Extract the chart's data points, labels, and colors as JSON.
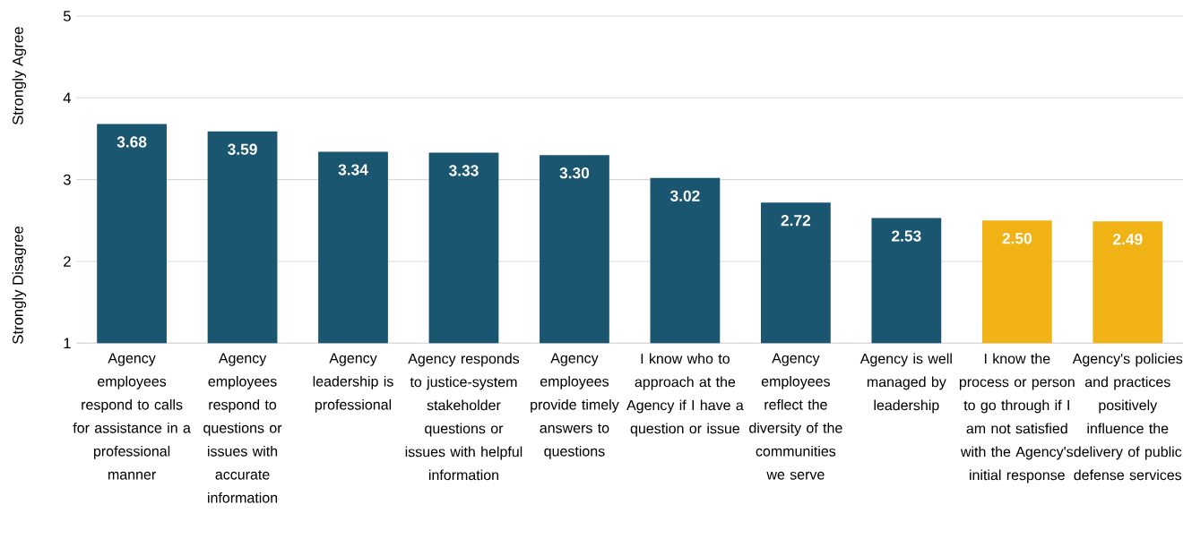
{
  "chart_data": {
    "type": "bar",
    "categories": [
      "Agency employees respond to calls for assistance in a professional manner",
      "Agency employees respond to questions or issues with accurate information",
      "Agency leadership is professional",
      "Agency responds to justice-system stakeholder questions or issues with helpful information",
      "Agency employees provide timely answers to questions",
      "I know who to approach at the Agency if I have a question or issue",
      "Agency employees reflect the diversity of the communities we serve",
      "Agency is well managed by leadership",
      "I know the process or person to go through if I am not satisfied with the Agency's initial response",
      "Agency's policies and practices positively influence the delivery of public defense services"
    ],
    "values": [
      3.68,
      3.59,
      3.34,
      3.33,
      3.3,
      3.02,
      2.72,
      2.53,
      2.5,
      2.49
    ],
    "value_labels": [
      "3.68",
      "3.59",
      "3.34",
      "3.33",
      "3.30",
      "3.02",
      "2.72",
      "2.53",
      "2.50",
      "2.49"
    ],
    "colors": [
      "#1b5670",
      "#1b5670",
      "#1b5670",
      "#1b5670",
      "#1b5670",
      "#1b5670",
      "#1b5670",
      "#1b5670",
      "#f0b215",
      "#f0b215"
    ],
    "ylim": [
      1,
      5
    ],
    "yticks": [
      1,
      2,
      3,
      4,
      5
    ],
    "grid": "y",
    "annotations": [
      "Strongly Agree",
      "Strongly Disagree"
    ]
  }
}
